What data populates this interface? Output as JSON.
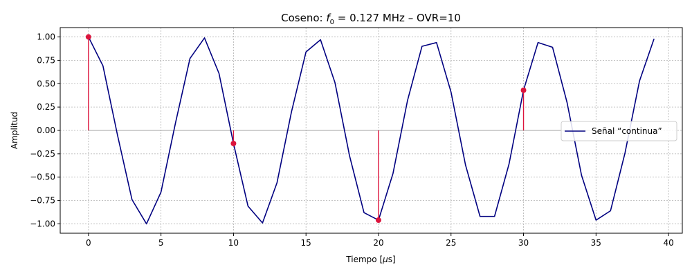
{
  "chart_data": {
    "type": "line",
    "title": "Coseno: f0 = 0.127 MHz  –  OVR=10",
    "title_parts": {
      "prefix": "Coseno: ",
      "var_main": "f",
      "var_sub": "0",
      "suffix": " = 0.127 MHz  –  OVR=10"
    },
    "xlabel": "Tiempo [μs]",
    "xlabel_parts": {
      "prefix": "Tiempo [",
      "mu": "μ",
      "suffix": "s]"
    },
    "ylabel": "Amplitud",
    "xlim": [
      -1.95,
      40.95
    ],
    "ylim": [
      -1.1,
      1.1
    ],
    "xticks": [
      0,
      5,
      10,
      15,
      20,
      25,
      30,
      35,
      40
    ],
    "xtick_labels": [
      "0",
      "5",
      "10",
      "15",
      "20",
      "25",
      "30",
      "35",
      "40"
    ],
    "yticks": [
      1.0,
      0.75,
      0.5,
      0.25,
      0.0,
      -0.25,
      -0.5,
      -0.75,
      -1.0
    ],
    "ytick_labels": [
      "1.00",
      "0.75",
      "0.50",
      "0.25",
      "0.00",
      "−0.25",
      "−0.50",
      "−0.75",
      "−1.00"
    ],
    "grid": true,
    "legend_position": "center-right",
    "series": [
      {
        "name": "Señal “continua”",
        "kind": "line",
        "color": "#000080",
        "x": [
          0,
          1,
          2,
          3,
          4,
          5,
          6,
          7,
          8,
          9,
          10,
          11,
          12,
          13,
          14,
          15,
          16,
          17,
          18,
          19,
          20,
          21,
          22,
          23,
          24,
          25,
          26,
          27,
          28,
          29,
          30,
          31,
          32,
          33,
          34,
          35,
          36,
          37,
          38,
          39
        ],
        "y": [
          1.0,
          0.69,
          -0.05,
          -0.74,
          -1.0,
          -0.66,
          0.08,
          0.77,
          0.99,
          0.61,
          -0.14,
          -0.81,
          -0.99,
          -0.56,
          0.2,
          0.84,
          0.97,
          0.51,
          -0.27,
          -0.88,
          -0.96,
          -0.46,
          0.32,
          0.9,
          0.94,
          0.41,
          -0.37,
          -0.92,
          -0.92,
          -0.36,
          0.43,
          0.94,
          0.89,
          0.3,
          -0.48,
          -0.96,
          -0.86,
          -0.24,
          0.53,
          0.98
        ]
      },
      {
        "name": "",
        "kind": "stem",
        "color": "#dc143c",
        "x": [
          0,
          10,
          20,
          30
        ],
        "y": [
          1.0,
          -0.14,
          -0.96,
          0.43
        ]
      }
    ],
    "colors": {
      "line": "#000080",
      "stem": "#dc143c",
      "baseline": "#a0a0a0",
      "grid": "#b0b0b0",
      "axes": "#000000"
    }
  }
}
